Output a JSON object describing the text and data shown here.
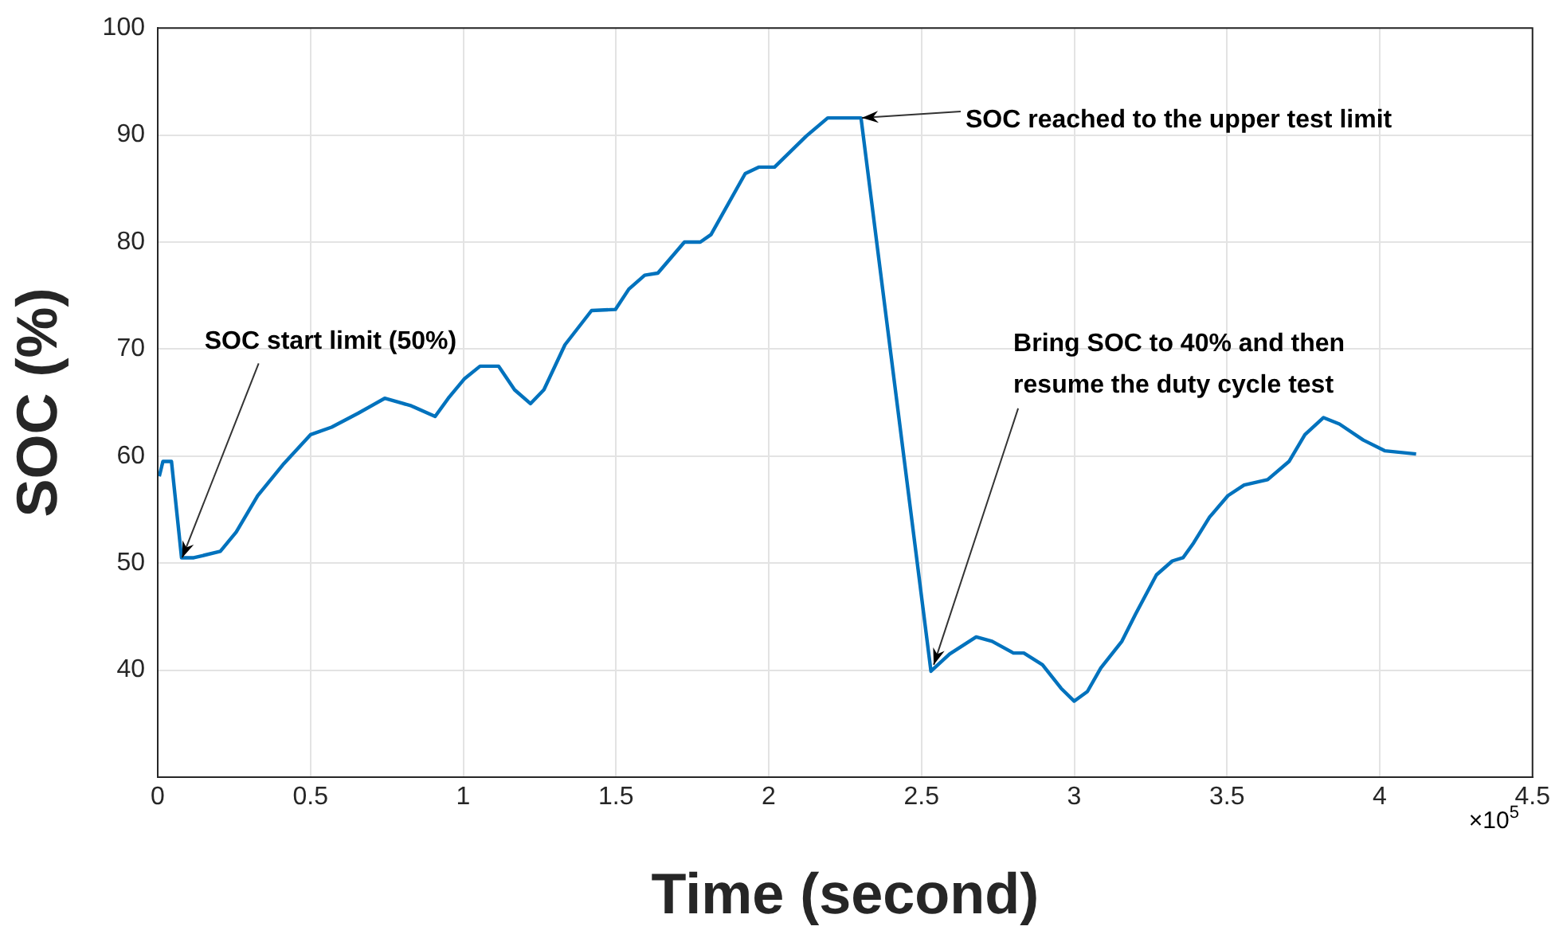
{
  "chart_data": {
    "type": "line",
    "xlabel": "Time (second)",
    "ylabel": "SOC (%)",
    "xlim": [
      0,
      4.5
    ],
    "xticks": [
      0,
      0.5,
      1,
      1.5,
      2,
      2.5,
      3,
      3.5,
      4,
      4.5
    ],
    "ylim": [
      30,
      100
    ],
    "yticks": [
      40,
      50,
      60,
      70,
      80,
      90,
      100
    ],
    "grid": true,
    "legend": false,
    "marker": "none",
    "line_style": "solid",
    "series": [
      {
        "color": "#0072bd",
        "x": [
          0.005,
          0.017,
          0.045,
          0.078,
          0.118,
          0.205,
          0.257,
          0.327,
          0.413,
          0.5,
          0.569,
          0.656,
          0.743,
          0.83,
          0.908,
          0.951,
          1.003,
          1.055,
          1.116,
          1.168,
          1.22,
          1.264,
          1.333,
          1.42,
          1.498,
          1.542,
          1.594,
          1.637,
          1.724,
          1.776,
          1.811,
          1.923,
          1.967,
          2.019,
          2.123,
          2.193,
          2.302,
          2.531,
          2.592,
          2.679,
          2.731,
          2.801,
          2.835,
          2.896,
          2.957,
          3.0,
          3.043,
          3.087,
          3.156,
          3.2,
          3.269,
          3.321,
          3.356,
          3.391,
          3.443,
          3.503,
          3.556,
          3.633,
          3.703,
          3.755,
          3.816,
          3.868,
          3.946,
          4.016,
          4.119
        ],
        "values": [
          58.1,
          59.5,
          59.5,
          50.5,
          50.5,
          51.1,
          52.9,
          56.3,
          59.3,
          62.0,
          62.7,
          64.0,
          65.4,
          64.7,
          63.7,
          65.4,
          67.2,
          68.4,
          68.4,
          66.2,
          64.9,
          66.2,
          70.4,
          73.6,
          73.7,
          75.6,
          76.9,
          77.1,
          80.0,
          80.0,
          80.7,
          86.4,
          87.0,
          87.0,
          89.9,
          91.6,
          91.6,
          39.9,
          41.5,
          43.1,
          42.7,
          41.6,
          41.6,
          40.5,
          38.3,
          37.1,
          38.0,
          40.2,
          42.7,
          45.2,
          48.9,
          50.2,
          50.5,
          51.9,
          54.3,
          56.3,
          57.3,
          57.8,
          59.5,
          62.0,
          63.6,
          63.0,
          61.5,
          60.5,
          60.2
        ]
      }
    ],
    "annotations": [
      {
        "text": "SOC start limit (50%)",
        "x": 0.08,
        "y": 50.5
      },
      {
        "text": "SOC reached to the upper test limit",
        "x": 2.305,
        "y": 91.6
      },
      {
        "text": "Bring SOC to 40% and then\nresume the duty cycle test",
        "x": 2.54,
        "y": 40.5
      },
      "×10$^{5}$"
    ]
  }
}
